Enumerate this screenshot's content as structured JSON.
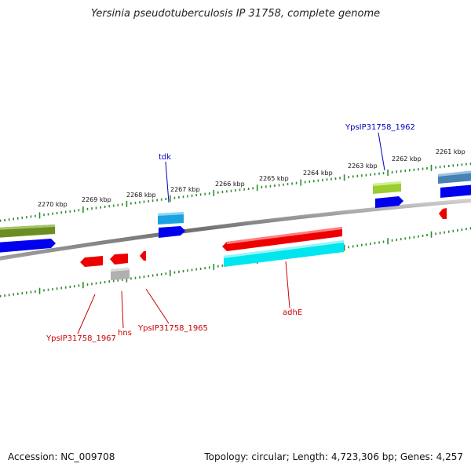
{
  "title": "Yersinia pseudotuberculosis IP 31758, complete genome",
  "footer": {
    "accession": "Accession: NC_009708",
    "summary": "Topology: circular; Length: 4,723,306 bp; Genes: 4,257"
  },
  "colors": {
    "backbone": "#808080",
    "tick": "#2e8b2e",
    "forward_label": "#0000c0",
    "reverse_label": "#cc0000"
  },
  "ticks": [
    "2270 kbp",
    "2269 kbp",
    "2268 kbp",
    "2267 kbp",
    "2266 kbp",
    "2265 kbp",
    "2264 kbp",
    "2263 kbp",
    "2262 kbp",
    "2261 kbp"
  ],
  "features": [
    {
      "name": "olive-block",
      "color": "#6b8e23"
    },
    {
      "name": "blue-arrow-left",
      "color": "#0000ee"
    },
    {
      "name": "tdk-cyan",
      "color": "#1aa3e0"
    },
    {
      "name": "tdk-blue",
      "color": "#0000ee"
    },
    {
      "name": "ypsip-1962-lime",
      "color": "#9acd32"
    },
    {
      "name": "ypsip-1962-blue",
      "color": "#0000ee"
    },
    {
      "name": "steelblue-block",
      "color": "#4682b4"
    },
    {
      "name": "blue-arrow-right",
      "color": "#0000ee"
    },
    {
      "name": "red-1967",
      "color": "#ee0000"
    },
    {
      "name": "red-hns",
      "color": "#ee0000"
    },
    {
      "name": "gray-hns",
      "color": "#b0b0b0"
    },
    {
      "name": "red-1965",
      "color": "#ee0000"
    },
    {
      "name": "adhE-red",
      "color": "#ee0000"
    },
    {
      "name": "adhE-cyan",
      "color": "#00e5ee"
    },
    {
      "name": "red-small-right",
      "color": "#ee0000"
    }
  ],
  "labels": {
    "tdk": "tdk",
    "ypsip_1962": "YpsIP31758_1962",
    "ypsip_1967": "YpsIP31758_1967",
    "hns": "hns",
    "ypsip_1965": "YpsIP31758_1965",
    "adhE": "adhE"
  }
}
